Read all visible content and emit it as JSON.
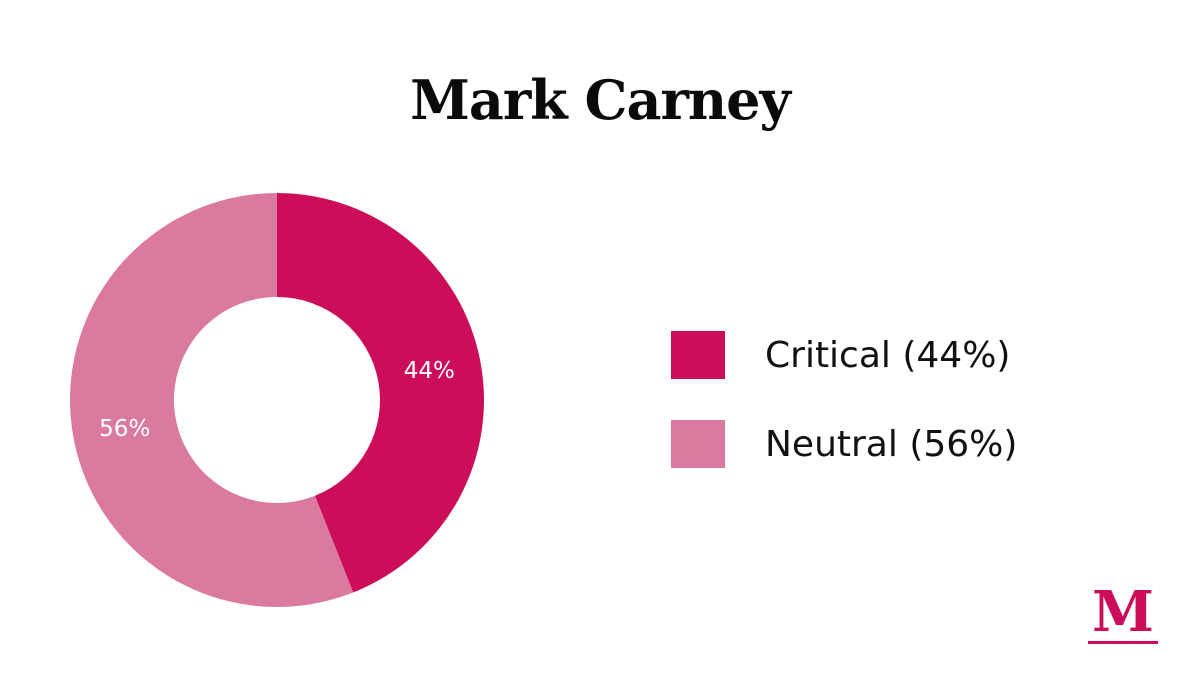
{
  "chart_data": {
    "type": "pie",
    "title": "Mark Carney",
    "series": [
      {
        "name": "Critical",
        "value": 44,
        "label": "44%",
        "legend": "Critical (44%)",
        "color": "#cc0e5a"
      },
      {
        "name": "Neutral",
        "value": 56,
        "label": "56%",
        "legend": "Neutral (56%)",
        "color": "#db7aa0"
      }
    ],
    "legend_position": "right",
    "donut": true
  },
  "logo": {
    "text": "M",
    "color": "#cc0e5a"
  }
}
